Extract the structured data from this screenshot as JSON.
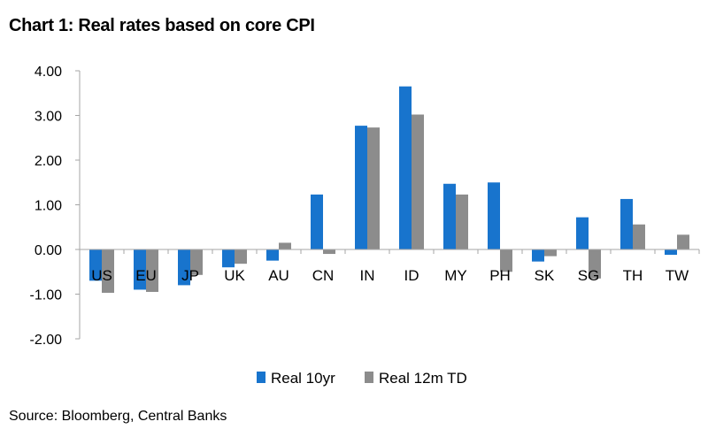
{
  "title": "Chart 1: Real rates based on core CPI",
  "source": "Source: Bloomberg, Central Banks",
  "colors": {
    "real_10yr": "#1874cd",
    "real_12m_td": "#8c8c8c",
    "axis": "#a6a6a6"
  },
  "chart_data": {
    "type": "bar",
    "title": "Chart 1: Real rates based on core CPI",
    "xlabel": "",
    "ylabel": "",
    "categories": [
      "US",
      "EU",
      "JP",
      "UK",
      "AU",
      "CN",
      "IN",
      "ID",
      "MY",
      "PH",
      "SK",
      "SG",
      "TH",
      "TW"
    ],
    "series": [
      {
        "name": "Real 10yr",
        "values": [
          -0.7,
          -0.9,
          -0.8,
          -0.4,
          -0.25,
          1.23,
          2.77,
          3.65,
          1.47,
          1.5,
          -0.27,
          0.72,
          1.13,
          -0.12
        ]
      },
      {
        "name": "Real 12m TD",
        "values": [
          -0.97,
          -0.95,
          -0.57,
          -0.32,
          0.15,
          -0.1,
          2.73,
          3.02,
          1.23,
          -0.5,
          -0.15,
          -0.65,
          0.56,
          0.33
        ]
      }
    ],
    "ylim": [
      -2,
      4
    ],
    "yticks": [
      4,
      3,
      2,
      1,
      0,
      -1,
      -2
    ],
    "ytick_labels": [
      "4.00",
      "3.00",
      "2.00",
      "1.00",
      "0.00",
      "-1.00",
      "-2.00"
    ],
    "legend_position": "bottom",
    "grid": false
  }
}
